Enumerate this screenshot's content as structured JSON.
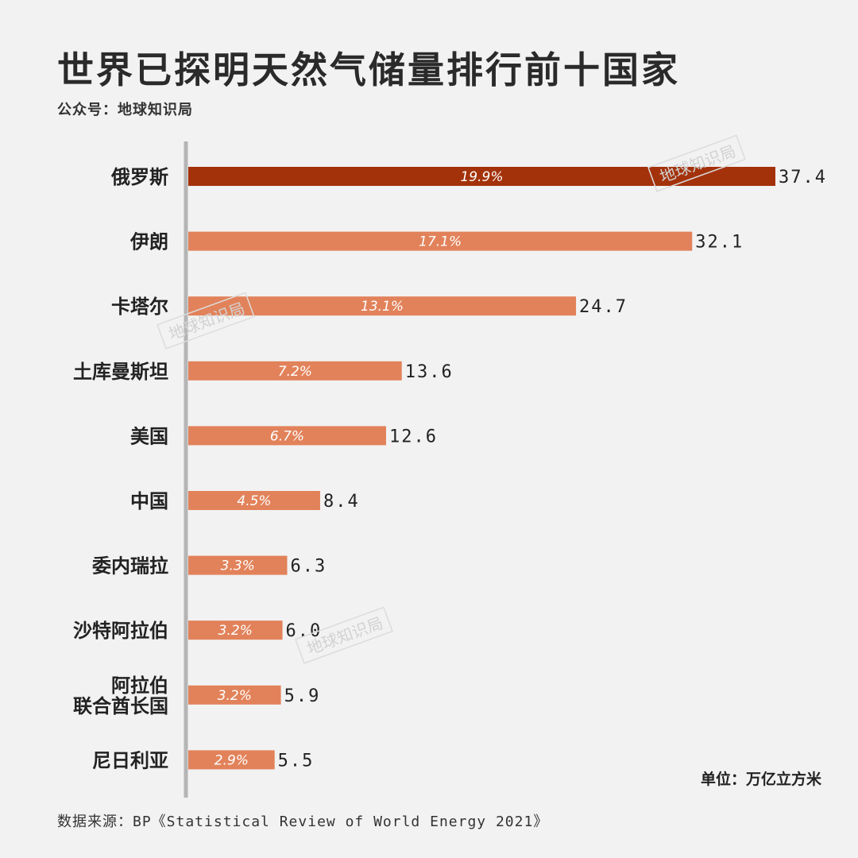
{
  "header": {
    "title": "世界已探明天然气储量排行前十国家",
    "subtitle": "公众号：地球知识局"
  },
  "footer": {
    "unit": "单位：万亿立方米",
    "source": "数据来源：BP《Statistical Review of World Energy 2021》"
  },
  "watermark": "地球知识局",
  "colors": {
    "highlight": "#a3320b",
    "bar": "#e2825a",
    "axis": "#b5b5b5"
  },
  "chart_data": {
    "type": "bar",
    "orientation": "horizontal",
    "title": "世界已探明天然气储量排行前十国家",
    "xlabel": "",
    "ylabel": "",
    "unit": "单位：万亿立方米",
    "categories": [
      [
        "俄罗斯"
      ],
      [
        "伊朗"
      ],
      [
        "卡塔尔"
      ],
      [
        "土库曼斯坦"
      ],
      [
        "美国"
      ],
      [
        "中国"
      ],
      [
        "委内瑞拉"
      ],
      [
        "沙特阿拉伯"
      ],
      [
        "阿拉伯",
        "联合酋长国"
      ],
      [
        "尼日利亚"
      ]
    ],
    "values": [
      37.4,
      32.1,
      24.7,
      13.6,
      12.6,
      8.4,
      6.3,
      6.0,
      5.9,
      5.5
    ],
    "value_labels": [
      "37.4",
      "32.1",
      "24.7",
      "13.6",
      "12.6",
      "8.4",
      "6.3",
      "6.0",
      "5.9",
      "5.5"
    ],
    "share_labels": [
      "19.9%",
      "17.1%",
      "13.1%",
      "7.2%",
      "6.7%",
      "4.5%",
      "3.3%",
      "3.2%",
      "3.2%",
      "2.9%"
    ],
    "highlight_index": 0,
    "xlim": [
      0,
      37.4
    ],
    "grid": false,
    "legend": "none"
  }
}
